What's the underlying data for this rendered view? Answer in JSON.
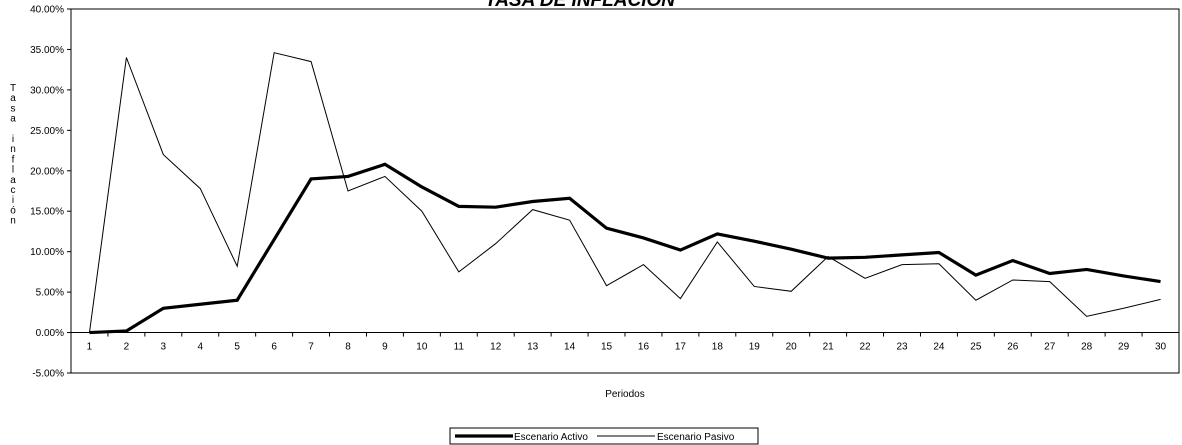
{
  "chart_data": {
    "type": "line",
    "title": "TASA DE INFLACIÓN",
    "xlabel": "Periodos",
    "ylabel": "Tasa inflación",
    "categories": [
      "1",
      "2",
      "3",
      "4",
      "5",
      "6",
      "7",
      "8",
      "9",
      "10",
      "11",
      "12",
      "13",
      "14",
      "15",
      "16",
      "17",
      "18",
      "19",
      "20",
      "21",
      "22",
      "23",
      "24",
      "25",
      "26",
      "27",
      "28",
      "29",
      "30"
    ],
    "y_ticks": [
      -5,
      0,
      5,
      10,
      15,
      20,
      25,
      30,
      35,
      40
    ],
    "y_tick_labels": [
      "-5.00%",
      "0.00%",
      "5.00%",
      "10.00%",
      "15.00%",
      "20.00%",
      "25.00%",
      "30.00%",
      "35.00%",
      "40.00%"
    ],
    "ylim": [
      -5,
      40
    ],
    "grid": false,
    "legend_position": "bottom-center",
    "series": [
      {
        "name": "Escenario Activo",
        "color": "#000000",
        "values": [
          0,
          0.2,
          3.0,
          3.5,
          4.0,
          11.5,
          19.0,
          19.3,
          20.8,
          18.0,
          15.6,
          15.5,
          16.2,
          16.6,
          12.9,
          11.7,
          10.2,
          12.2,
          11.3,
          10.3,
          9.2,
          9.3,
          9.6,
          9.9,
          7.1,
          8.9,
          7.3,
          7.8,
          7.0,
          6.3
        ]
      },
      {
        "name": "Escenario Pasivo",
        "color": "#000000",
        "values": [
          0,
          34.0,
          22.0,
          17.8,
          8.2,
          34.6,
          33.5,
          17.5,
          19.3,
          15.0,
          7.5,
          11.0,
          15.2,
          13.9,
          5.8,
          8.4,
          4.2,
          11.2,
          5.7,
          5.1,
          9.4,
          6.7,
          8.4,
          8.5,
          4.0,
          6.5,
          6.3,
          2.0,
          3.0,
          4.1
        ]
      }
    ]
  }
}
